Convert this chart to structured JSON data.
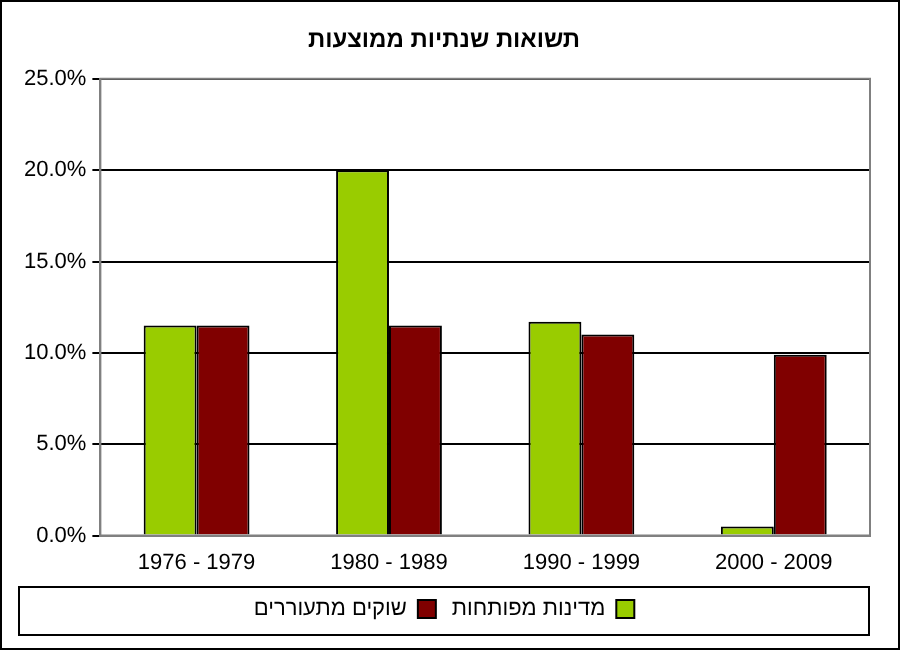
{
  "chart_data": {
    "type": "bar",
    "title": "תשואות שנתיות ממוצעות",
    "categories": [
      "1976 - 1979",
      "1980 - 1989",
      "1990 - 1999",
      "2000 - 2009"
    ],
    "series": [
      {
        "name": "מדינות מפותחות",
        "color": "#99cc00",
        "values": [
          11.5,
          20.0,
          11.7,
          0.5
        ]
      },
      {
        "name": "שוקים מתעוררים",
        "color": "#800000",
        "values": [
          11.5,
          11.5,
          11.0,
          9.9
        ]
      }
    ],
    "ylim": [
      0,
      25
    ],
    "yticks": [
      {
        "value": 0,
        "label": "0.0%"
      },
      {
        "value": 5,
        "label": "5.0%"
      },
      {
        "value": 10,
        "label": "10.0%"
      },
      {
        "value": 15,
        "label": "15.0%"
      },
      {
        "value": 20,
        "label": "20.0%"
      },
      {
        "value": 25,
        "label": "25.0%"
      }
    ],
    "grid": "y",
    "legend": "bottom"
  }
}
